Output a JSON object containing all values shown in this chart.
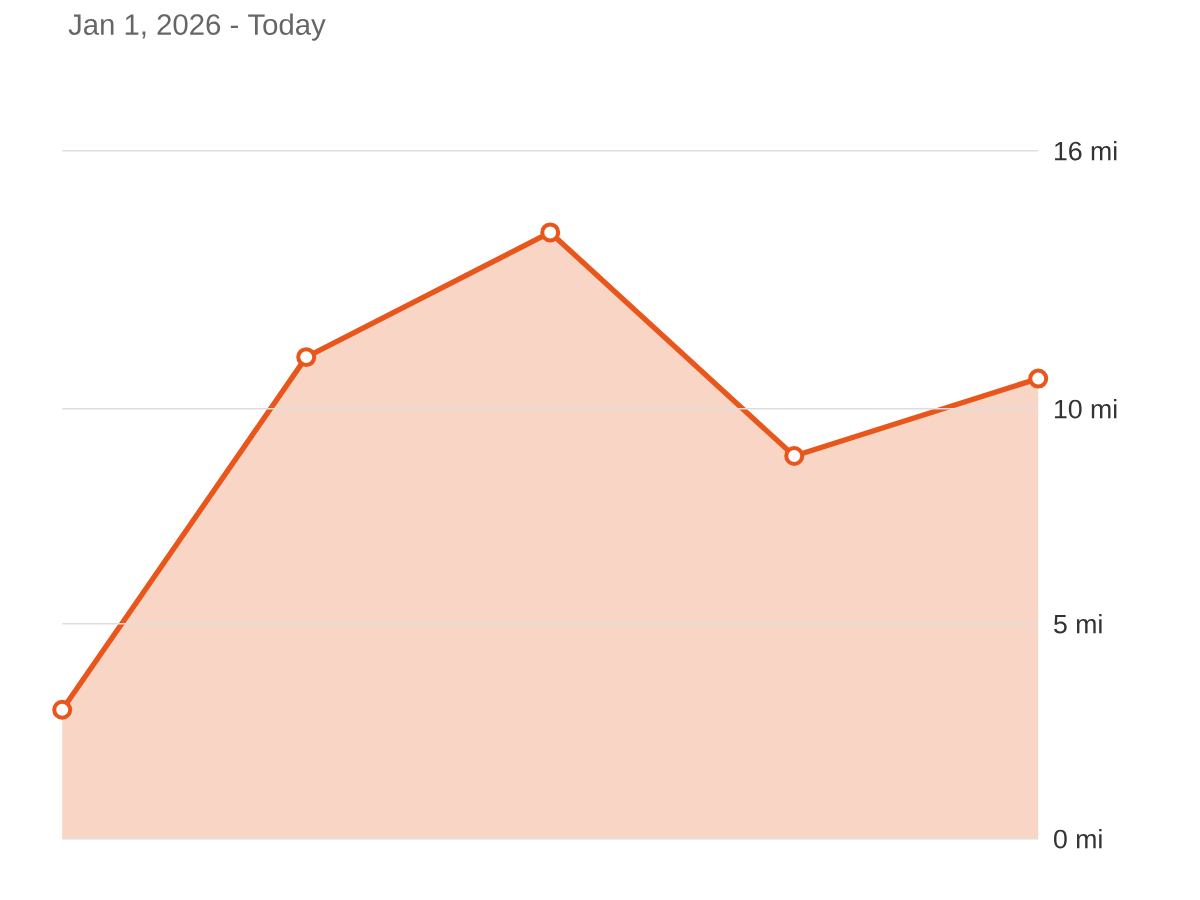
{
  "chart_data": {
    "type": "area",
    "title": "Jan 1, 2026 - Today",
    "categories": [
      null,
      null,
      null,
      null,
      null
    ],
    "series": [
      {
        "color": "#e8561c",
        "values": [
          3.0,
          11.2,
          14.1,
          8.9,
          10.7
        ]
      }
    ],
    "ylim": [
      0,
      16
    ],
    "yticks": [
      {
        "value": 0,
        "label": "0 mi"
      },
      {
        "value": 5,
        "label": "5 mi"
      },
      {
        "value": 10,
        "label": "10 mi"
      },
      {
        "value": 16,
        "label": "16 mi"
      }
    ],
    "grid": "y",
    "marker": "circle",
    "line_style": "solid"
  }
}
